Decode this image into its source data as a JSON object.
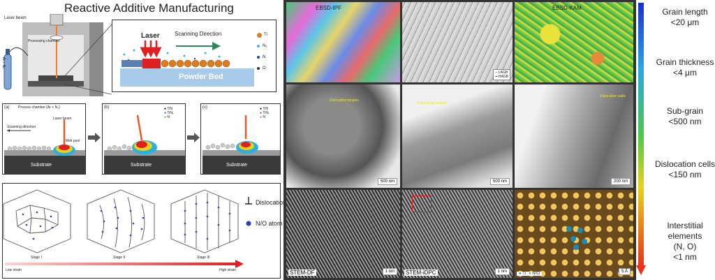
{
  "title": "Reactive Additive Manufacturing",
  "setup": {
    "laser_beam": "Laser beam",
    "processing_chamber": "Processing chamber",
    "gas_label": "Ar + N₂",
    "inset_laser": "Laser",
    "scanning_direction": "Scanning Direction",
    "powder_bed": "Powder Bed",
    "legend": [
      {
        "label": "Ti",
        "color": "#e07b1a"
      },
      {
        "label": "N₂",
        "color": "#39b7e8"
      },
      {
        "label": "N",
        "color": "#2040c0"
      },
      {
        "label": "O",
        "color": "#333333"
      }
    ]
  },
  "process_panels": [
    {
      "tag": "(a)",
      "title": "Process chamber (Ar + N₂)",
      "laser": "Laser beam",
      "scan": "Scanning direction",
      "pool": "Melt pool",
      "substrate": "Substrate",
      "legend": []
    },
    {
      "tag": "(b)",
      "title": "",
      "laser": "",
      "scan": "",
      "pool": "",
      "substrate": "Substrate",
      "legend": [
        "TiN",
        "TiNₓ",
        "N"
      ]
    },
    {
      "tag": "(c)",
      "title": "",
      "laser": "",
      "scan": "",
      "pool": "",
      "substrate": "Substrate",
      "legend": [
        "TiN",
        "TiNₓ",
        "N"
      ]
    }
  ],
  "stages": {
    "labels": [
      "Stage I",
      "Stage II",
      "Stage III"
    ],
    "dislocation": "Dislocation",
    "atom": "N/O atom",
    "low": "Low strain",
    "high": "High strain"
  },
  "micro_panels": {
    "row1": [
      "EBSD-IPF",
      "",
      "EBSD-KAM"
    ],
    "row1_legend": [
      "LAGB",
      "HAGB"
    ],
    "row2_scale": [
      "500 nm",
      "500 nm",
      "200 nm"
    ],
    "row2_notes": [
      "Dislocation tangles",
      "Dislocation tangles",
      "Dislocation walls"
    ],
    "row3": [
      "STEM-DF",
      "STEM-iDPC",
      ""
    ],
    "row3_scale": [
      "1 nm",
      "1 nm",
      "5 Å"
    ],
    "row3_legend": [
      "Ti",
      "N/O"
    ]
  },
  "hierarchy": [
    {
      "line1": "Grain length",
      "line2": "<20 μm"
    },
    {
      "line1": "Grain thickness",
      "line2": "<4 μm"
    },
    {
      "line1": "Sub-grain",
      "line2": "<500 nm"
    },
    {
      "line1": "Dislocation cells",
      "line2": "<150 nm"
    },
    {
      "line1": "Interstitial",
      "line2": "elements",
      "line3": "(N, O)",
      "line4": "<1 nm"
    }
  ],
  "colors": {
    "accent_red": "#e02020",
    "gradient_top": "#1a2fd0",
    "gradient_bottom": "#e8321a"
  }
}
